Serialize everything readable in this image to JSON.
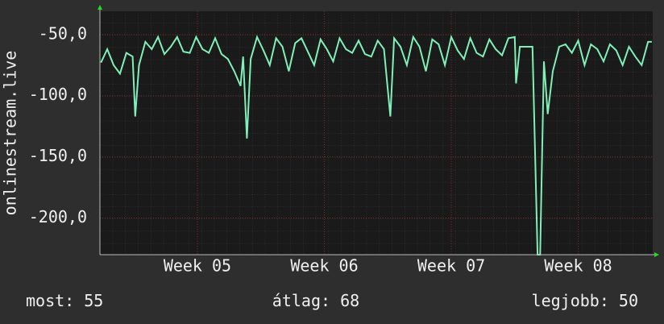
{
  "chart_data": {
    "type": "line",
    "y_label": "onlinestream.live",
    "x": [
      4.24,
      4.29,
      4.34,
      4.39,
      4.44,
      4.49,
      4.51,
      4.54,
      4.59,
      4.64,
      4.69,
      4.74,
      4.79,
      4.84,
      4.89,
      4.94,
      4.99,
      5.04,
      5.09,
      5.14,
      5.19,
      5.24,
      5.29,
      5.34,
      5.36,
      5.39,
      5.42,
      5.47,
      5.52,
      5.57,
      5.62,
      5.67,
      5.72,
      5.77,
      5.82,
      5.87,
      5.92,
      5.97,
      6.02,
      6.07,
      6.12,
      6.17,
      6.22,
      6.27,
      6.32,
      6.37,
      6.42,
      6.47,
      6.52,
      6.55,
      6.6,
      6.65,
      6.7,
      6.75,
      6.8,
      6.85,
      6.9,
      6.95,
      7.0,
      7.05,
      7.1,
      7.15,
      7.2,
      7.25,
      7.3,
      7.35,
      7.4,
      7.45,
      7.5,
      7.51,
      7.54,
      7.59,
      7.64,
      7.68,
      7.7,
      7.73,
      7.76,
      7.8,
      7.85,
      7.9,
      7.95,
      8.0,
      8.05,
      8.1,
      8.15,
      8.2,
      8.25,
      8.3,
      8.35,
      8.4,
      8.45,
      8.5,
      8.55,
      8.58
    ],
    "series": [
      {
        "color": "#80f0b8",
        "values": [
          -73,
          -62,
          -75,
          -82,
          -65,
          -68,
          -117,
          -75,
          -56,
          -62,
          -52,
          -66,
          -60,
          -52,
          -64,
          -65,
          -52,
          -62,
          -65,
          -53,
          -66,
          -70,
          -80,
          -92,
          -68,
          -135,
          -70,
          -52,
          -63,
          -75,
          -53,
          -60,
          -80,
          -57,
          -53,
          -64,
          -75,
          -54,
          -62,
          -72,
          -53,
          -62,
          -65,
          -55,
          -66,
          -68,
          -55,
          -62,
          -117,
          -53,
          -60,
          -75,
          -52,
          -60,
          -80,
          -54,
          -58,
          -75,
          -52,
          -63,
          -70,
          -53,
          -65,
          -68,
          -54,
          -62,
          -67,
          -53,
          -52,
          -90,
          -60,
          -60,
          -60,
          -230,
          -230,
          -72,
          -115,
          -80,
          -60,
          -58,
          -65,
          -55,
          -75,
          -58,
          -62,
          -72,
          -58,
          -63,
          -75,
          -60,
          -68,
          -75,
          -56,
          -56
        ]
      }
    ],
    "xlim": [
      4.232,
      8.587
    ],
    "xticks": [
      {
        "value": 5,
        "label": "Week 05"
      },
      {
        "value": 6,
        "label": "Week 06"
      },
      {
        "value": 7,
        "label": "Week 07"
      },
      {
        "value": 8,
        "label": "Week 08"
      }
    ],
    "ylim": [
      -230,
      -31
    ],
    "yticks": [
      {
        "value": -50,
        "label": "-50,0"
      },
      {
        "value": -100,
        "label": "-100,0"
      },
      {
        "value": -150,
        "label": "-150,0"
      },
      {
        "value": -200,
        "label": "-200,0"
      }
    ],
    "grid": true,
    "summary": [
      {
        "label": "most:",
        "value": 55
      },
      {
        "label": "átlag:",
        "value": 68
      },
      {
        "label": "legjobb:",
        "value": 50
      }
    ]
  }
}
